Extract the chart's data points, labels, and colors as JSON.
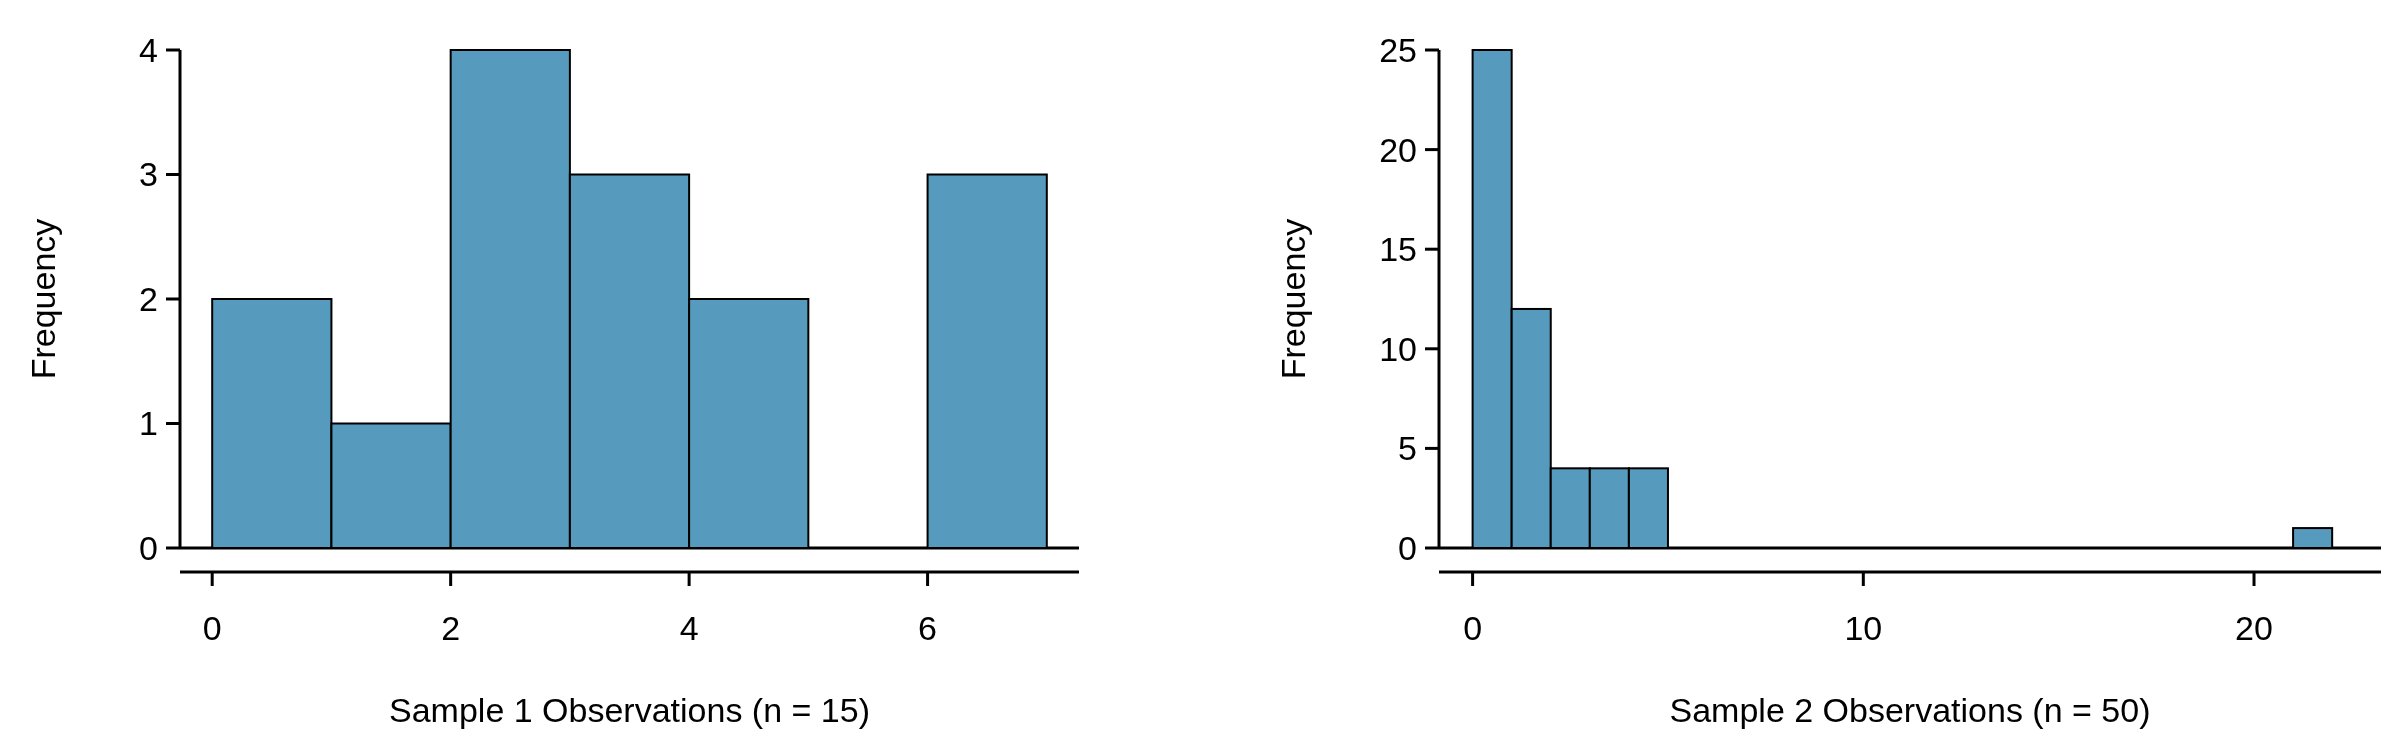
{
  "chart_data": [
    {
      "type": "histogram",
      "xlabel": "Sample 1 Observations (n = 15)",
      "ylabel": "Frequency",
      "bins": [
        0,
        1,
        2,
        3,
        4,
        5,
        6,
        7
      ],
      "values": [
        2,
        1,
        4,
        3,
        2,
        0,
        3
      ],
      "color": "#569bbd",
      "xlim": [
        -0.27,
        7.27
      ],
      "xticks": [
        0,
        2,
        4,
        6
      ],
      "ylim": [
        0,
        4
      ],
      "yticks": [
        0,
        1,
        2,
        3,
        4
      ]
    },
    {
      "type": "histogram",
      "xlabel": "Sample 2 Observations (n = 50)",
      "ylabel": "Frequency",
      "bins": [
        0,
        1,
        2,
        3,
        4,
        5,
        6,
        7,
        8,
        9,
        10,
        11,
        12,
        13,
        14,
        15,
        16,
        17,
        18,
        19,
        20,
        21,
        22
      ],
      "values": [
        25,
        12,
        4,
        4,
        4,
        0,
        0,
        0,
        0,
        0,
        0,
        0,
        0,
        0,
        0,
        0,
        0,
        0,
        0,
        0,
        0,
        1
      ],
      "color": "#569bbd",
      "xlim": [
        -0.86,
        23.25
      ],
      "xticks": [
        0,
        10,
        20
      ],
      "ylim": [
        0,
        25
      ],
      "yticks": [
        0,
        5,
        10,
        15,
        20,
        25
      ]
    }
  ]
}
